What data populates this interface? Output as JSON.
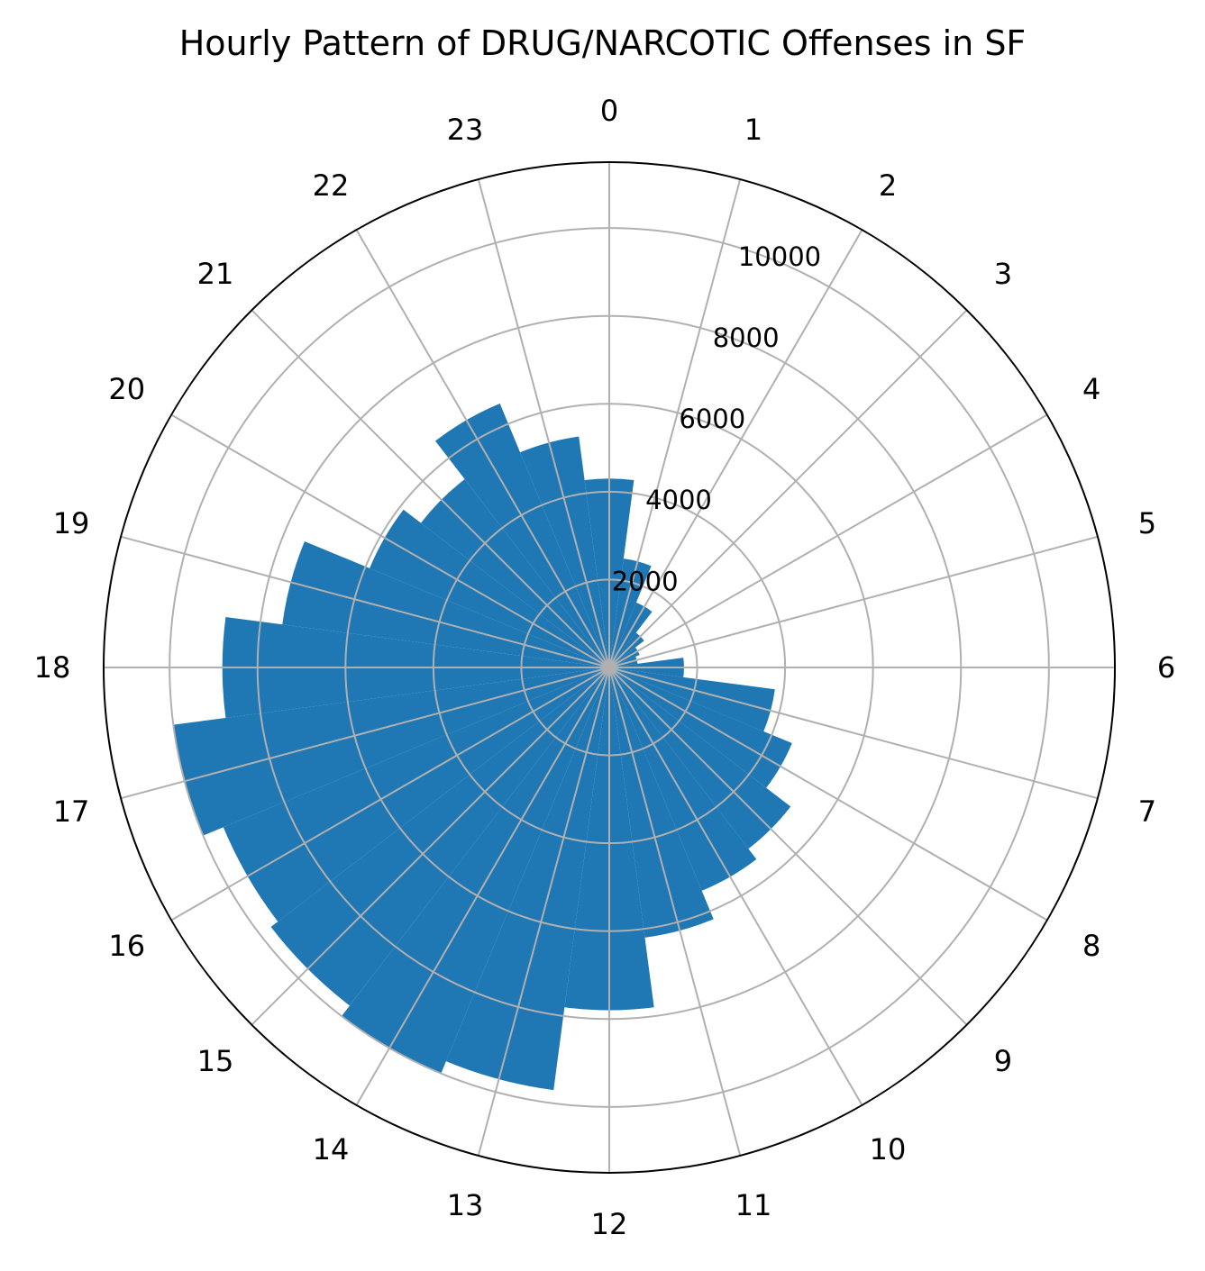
{
  "chart_data": {
    "type": "bar",
    "polar": true,
    "title": "Hourly Pattern of DRUG/NARCOTIC Offenses in SF",
    "categories": [
      "0",
      "1",
      "2",
      "3",
      "4",
      "5",
      "6",
      "7",
      "8",
      "9",
      "10",
      "11",
      "12",
      "13",
      "14",
      "15",
      "16",
      "17",
      "18",
      "19",
      "20",
      "21",
      "22",
      "23"
    ],
    "values": [
      4300,
      2500,
      1600,
      1000,
      750,
      650,
      1700,
      3800,
      4500,
      5200,
      5500,
      6200,
      7800,
      9700,
      10000,
      9700,
      9500,
      10000,
      8800,
      7500,
      5900,
      5400,
      6500,
      5300
    ],
    "rticks": [
      2000,
      4000,
      6000,
      8000,
      10000
    ],
    "rlim": [
      0,
      11500
    ],
    "color": "#1f77b4",
    "grid": true
  }
}
